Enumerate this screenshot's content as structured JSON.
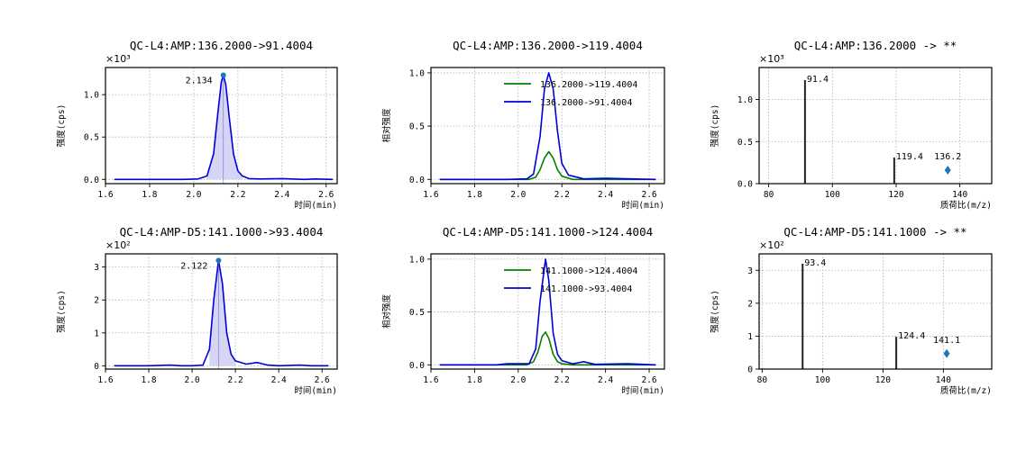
{
  "chart_data": [
    {
      "type": "line",
      "title": "QC-L4:AMP:136.2000->91.4004",
      "xlabel": "时间(min)",
      "ylabel": "强度(cps)",
      "multiplier": "×10³",
      "xlim": [
        1.6,
        2.65
      ],
      "ylim": [
        -0.05,
        1.32
      ],
      "xticks": [
        "1.6",
        "1.8",
        "2.0",
        "2.2",
        "2.4",
        "2.6"
      ],
      "yticks": [
        "0.0",
        "0.5",
        "1.0"
      ],
      "grid": true,
      "series": [
        {
          "color": "#0000dd",
          "x": [
            1.64,
            1.8,
            1.95,
            2.02,
            2.06,
            2.09,
            2.11,
            2.125,
            2.134,
            2.145,
            2.16,
            2.18,
            2.2,
            2.22,
            2.25,
            2.3,
            2.4,
            2.5,
            2.55,
            2.63
          ],
          "y": [
            0.0,
            0.0,
            0.0,
            0.005,
            0.04,
            0.3,
            0.8,
            1.15,
            1.23,
            1.12,
            0.75,
            0.3,
            0.1,
            0.04,
            0.01,
            0.005,
            0.01,
            0.0,
            0.005,
            0.0
          ]
        }
      ],
      "apex": {
        "x": 2.134,
        "y": 1.23,
        "label": "2.134"
      },
      "shade": [
        2.05,
        2.23
      ]
    },
    {
      "type": "line",
      "title": "QC-L4:AMP:136.2000->119.4004",
      "xlabel": "时间(min)",
      "ylabel": "相对强度",
      "xlim": [
        1.6,
        2.67
      ],
      "ylim": [
        -0.04,
        1.05
      ],
      "xticks": [
        "1.6",
        "1.8",
        "2.0",
        "2.2",
        "2.4",
        "2.6"
      ],
      "yticks": [
        "0.0",
        "0.5",
        "1.0"
      ],
      "grid": true,
      "legend": "top-right",
      "series": [
        {
          "name": "136.2000->119.4004",
          "color": "#008000",
          "x": [
            1.64,
            1.9,
            2.05,
            2.08,
            2.1,
            2.12,
            2.14,
            2.16,
            2.18,
            2.2,
            2.25,
            2.4,
            2.63
          ],
          "y": [
            0.0,
            0.0,
            0.0,
            0.02,
            0.09,
            0.2,
            0.26,
            0.2,
            0.09,
            0.03,
            0.0,
            0.0,
            0.0
          ]
        },
        {
          "name": "136.2000->91.4004",
          "color": "#0000dd",
          "x": [
            1.64,
            1.95,
            2.04,
            2.07,
            2.1,
            2.12,
            2.14,
            2.16,
            2.18,
            2.2,
            2.23,
            2.3,
            2.4,
            2.63
          ],
          "y": [
            0.0,
            0.0,
            0.005,
            0.05,
            0.4,
            0.85,
            1.0,
            0.85,
            0.45,
            0.15,
            0.04,
            0.005,
            0.01,
            0.0
          ]
        }
      ]
    },
    {
      "type": "bar",
      "title": "QC-L4:AMP:136.2000 -> **",
      "xlabel": "质荷比(m/z)",
      "ylabel": "强度(cps)",
      "multiplier": "×10³",
      "xlim": [
        77,
        150
      ],
      "ylim": [
        0,
        1.38
      ],
      "xticks": [
        "80",
        "100",
        "120",
        "140"
      ],
      "yticks": [
        "0.0",
        "0.5",
        "1.0"
      ],
      "grid": true,
      "bars": [
        {
          "x": 91.4,
          "value": 1.23,
          "label": "91.4"
        },
        {
          "x": 119.4,
          "value": 0.31,
          "label": "119.4"
        }
      ],
      "precursor": {
        "x": 136.2,
        "value": 0.16,
        "label": "136.2"
      }
    },
    {
      "type": "line",
      "title": "QC-L4:AMP-D5:141.1000->93.4004",
      "xlabel": "时间(min)",
      "ylabel": "强度(cps)",
      "multiplier": "×10²",
      "xlim": [
        1.6,
        2.67
      ],
      "ylim": [
        -0.1,
        3.4
      ],
      "xticks": [
        "1.6",
        "1.8",
        "2.0",
        "2.2",
        "2.4",
        "2.6"
      ],
      "yticks": [
        "0",
        "1",
        "2",
        "3"
      ],
      "grid": true,
      "series": [
        {
          "color": "#0000dd",
          "x": [
            1.64,
            1.8,
            1.9,
            1.95,
            2.0,
            2.05,
            2.08,
            2.1,
            2.122,
            2.14,
            2.16,
            2.18,
            2.2,
            2.25,
            2.3,
            2.35,
            2.4,
            2.5,
            2.55,
            2.63
          ],
          "y": [
            0.0,
            0.0,
            0.02,
            0.0,
            0.0,
            0.02,
            0.5,
            2.0,
            3.2,
            2.5,
            1.0,
            0.35,
            0.15,
            0.05,
            0.1,
            0.02,
            0.0,
            0.02,
            0.0,
            0.0
          ]
        }
      ],
      "apex": {
        "x": 2.122,
        "y": 3.2,
        "label": "2.122"
      },
      "shade": [
        2.06,
        2.22
      ]
    },
    {
      "type": "line",
      "title": "QC-L4:AMP-D5:141.1000->124.4004",
      "xlabel": "时间(min)",
      "ylabel": "相对强度",
      "xlim": [
        1.6,
        2.67
      ],
      "ylim": [
        -0.04,
        1.05
      ],
      "xticks": [
        "1.6",
        "1.8",
        "2.0",
        "2.2",
        "2.4",
        "2.6"
      ],
      "yticks": [
        "0.0",
        "0.5",
        "1.0"
      ],
      "grid": true,
      "legend": "top-right",
      "series": [
        {
          "name": "141.1000->124.4004",
          "color": "#008000",
          "x": [
            1.64,
            1.9,
            2.04,
            2.07,
            2.09,
            2.11,
            2.125,
            2.14,
            2.16,
            2.18,
            2.2,
            2.25,
            2.4,
            2.63
          ],
          "y": [
            0.0,
            0.0,
            0.0,
            0.03,
            0.12,
            0.27,
            0.31,
            0.25,
            0.1,
            0.03,
            0.01,
            0.0,
            0.0,
            0.0
          ]
        },
        {
          "name": "141.1000->93.4004",
          "color": "#0000dd",
          "x": [
            1.64,
            1.9,
            1.95,
            2.05,
            2.08,
            2.1,
            2.125,
            2.14,
            2.16,
            2.18,
            2.2,
            2.25,
            2.3,
            2.35,
            2.5,
            2.63
          ],
          "y": [
            0.0,
            0.0,
            0.01,
            0.01,
            0.15,
            0.6,
            1.0,
            0.8,
            0.3,
            0.1,
            0.04,
            0.01,
            0.03,
            0.005,
            0.01,
            0.0
          ]
        }
      ]
    },
    {
      "type": "bar",
      "title": "QC-L4:AMP-D5:141.1000 -> **",
      "xlabel": "质荷比(m/z)",
      "ylabel": "强度(cps)",
      "multiplier": "×10²",
      "xlim": [
        79,
        156
      ],
      "ylim": [
        0,
        3.5
      ],
      "xticks": [
        "80",
        "100",
        "120",
        "140"
      ],
      "yticks": [
        "0",
        "1",
        "2",
        "3"
      ],
      "grid": true,
      "bars": [
        {
          "x": 93.4,
          "value": 3.2,
          "label": "93.4"
        },
        {
          "x": 124.4,
          "value": 0.98,
          "label": "124.4"
        }
      ],
      "precursor": {
        "x": 141.1,
        "value": 0.47,
        "label": "141.1"
      }
    }
  ]
}
